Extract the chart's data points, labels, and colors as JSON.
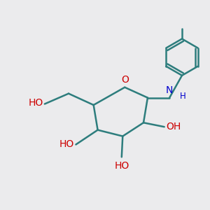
{
  "background_color": "#ebebed",
  "bond_color": "#2d7d7d",
  "oxygen_color": "#cc0000",
  "nitrogen_color": "#0000cc",
  "line_width": 1.8,
  "figsize": [
    3.0,
    3.0
  ],
  "dpi": 100,
  "xlim": [
    0,
    10
  ],
  "ylim": [
    0,
    10
  ]
}
